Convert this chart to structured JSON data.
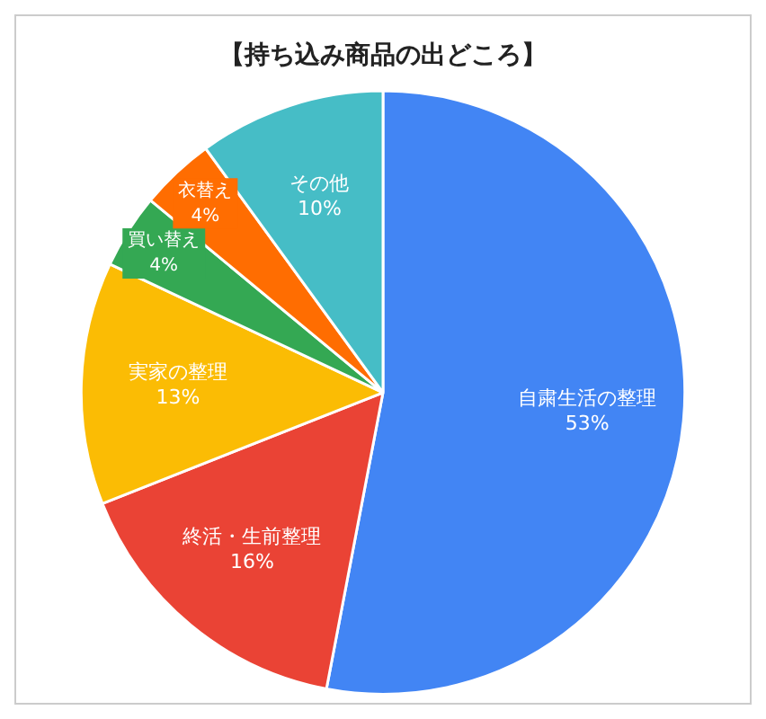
{
  "chart_data": {
    "type": "pie",
    "title": "【持ち込み商品の出どころ】",
    "categories": [
      "自粛生活の整理",
      "終活・生前整理",
      "実家の整理",
      "買い替え",
      "衣替え",
      "その他"
    ],
    "values": [
      53,
      16,
      13,
      4,
      4,
      10
    ],
    "value_labels": [
      "53%",
      "16%",
      "13%",
      "4%",
      "4%",
      "10%"
    ],
    "colors": [
      "#4285f4",
      "#ea4335",
      "#fbbc04",
      "#34a853",
      "#ff6d01",
      "#46bdc6"
    ],
    "legend": false
  }
}
